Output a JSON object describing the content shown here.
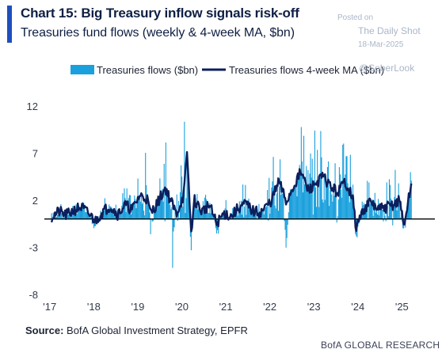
{
  "header": {
    "title": "Chart 15: Big Treasury inflow signals risk-off",
    "subtitle": "Treasuries fund flows (weekly & 4-week MA, $bn)"
  },
  "watermark": {
    "posted": "Posted on",
    "site": "The Daily Shot",
    "date": "18-Mar-2025",
    "handle": "@SoberLook"
  },
  "footer": {
    "source_label": "Source:",
    "source_text": " BofA Global Investment Strategy, EPFR",
    "research": "BofA GLOBAL RESEARCH"
  },
  "colors": {
    "bars": "#1aa0dd",
    "ma_line": "#0c1f5c",
    "zero_line": "#000000",
    "accent": "#1f4fbf"
  },
  "chart_data": {
    "type": "bar",
    "title": "Treasuries fund flows (weekly & 4-week MA, $bn)",
    "xlabel": "",
    "ylabel": "",
    "ylim": [
      -8,
      14
    ],
    "yticks": [
      12,
      7,
      2,
      -3,
      -8
    ],
    "ytick_labels": [
      "12",
      "7",
      "2",
      "-3",
      "-8"
    ],
    "xlim": [
      2016.95,
      2025.75
    ],
    "xticks": [
      2017,
      2018,
      2019,
      2020,
      2021,
      2022,
      2023,
      2024,
      2025
    ],
    "xtick_labels": [
      "'17",
      "'18",
      "'19",
      "'20",
      "'21",
      "'22",
      "'23",
      "'24",
      "'25"
    ],
    "legend_position": "top",
    "grid": false,
    "series": [
      {
        "name": "Treasuries flows ($bn)",
        "type": "bar"
      },
      {
        "name": "Treasuries flows 4-week MA ($bn)",
        "type": "line"
      }
    ],
    "x": [
      "2017-01",
      "2017-03",
      "2017-05",
      "2017-07",
      "2017-09",
      "2017-11",
      "2018-01",
      "2018-03",
      "2018-05",
      "2018-07",
      "2018-09",
      "2018-11",
      "2019-01",
      "2019-03",
      "2019-04",
      "2019-06",
      "2019-08",
      "2019-10",
      "2019-11",
      "2020-01",
      "2020-02",
      "2020-03",
      "2020-04",
      "2020-06",
      "2020-08",
      "2020-10",
      "2020-12",
      "2021-02",
      "2021-04",
      "2021-06",
      "2021-08",
      "2021-10",
      "2021-12",
      "2022-01",
      "2022-03",
      "2022-05",
      "2022-07",
      "2022-09",
      "2022-11",
      "2023-01",
      "2023-03",
      "2023-05",
      "2023-07",
      "2023-09",
      "2023-11",
      "2023-12",
      "2024-02",
      "2024-04",
      "2024-06",
      "2024-08",
      "2024-10",
      "2024-12",
      "2025-01",
      "2025-03"
    ],
    "weekly_peak": [
      1.5,
      2.0,
      0.8,
      1.8,
      2.4,
      0.9,
      -1.8,
      2.5,
      3.0,
      1.2,
      3.8,
      2.1,
      5.0,
      8.5,
      -5.5,
      4.2,
      9.8,
      -6.0,
      3.5,
      10.5,
      13.8,
      -4.8,
      5.5,
      1.5,
      4.5,
      -3.0,
      2.8,
      1.0,
      3.5,
      4.0,
      2.5,
      2.0,
      4.5,
      6.0,
      9.5,
      -5.0,
      8.0,
      11.5,
      6.5,
      10.0,
      12.0,
      9.0,
      8.5,
      10.2,
      7.0,
      -3.5,
      3.5,
      5.0,
      4.0,
      3.5,
      6.0,
      5.5,
      -4.0,
      6.2
    ],
    "ma_values": [
      0.2,
      0.8,
      0.4,
      0.9,
      1.3,
      0.6,
      -0.2,
      0.8,
      1.4,
      0.5,
      1.5,
      1.0,
      2.5,
      2.2,
      0.6,
      1.8,
      3.3,
      1.5,
      0.5,
      2.5,
      7.0,
      -1.5,
      2.0,
      0.8,
      1.5,
      -0.5,
      0.6,
      0.3,
      1.2,
      1.6,
      0.8,
      0.7,
      1.5,
      2.0,
      4.0,
      1.8,
      3.5,
      5.0,
      3.0,
      3.8,
      4.5,
      3.5,
      2.8,
      4.0,
      2.5,
      -1.0,
      1.0,
      1.8,
      1.0,
      1.2,
      1.5,
      2.0,
      -0.8,
      3.5
    ]
  }
}
